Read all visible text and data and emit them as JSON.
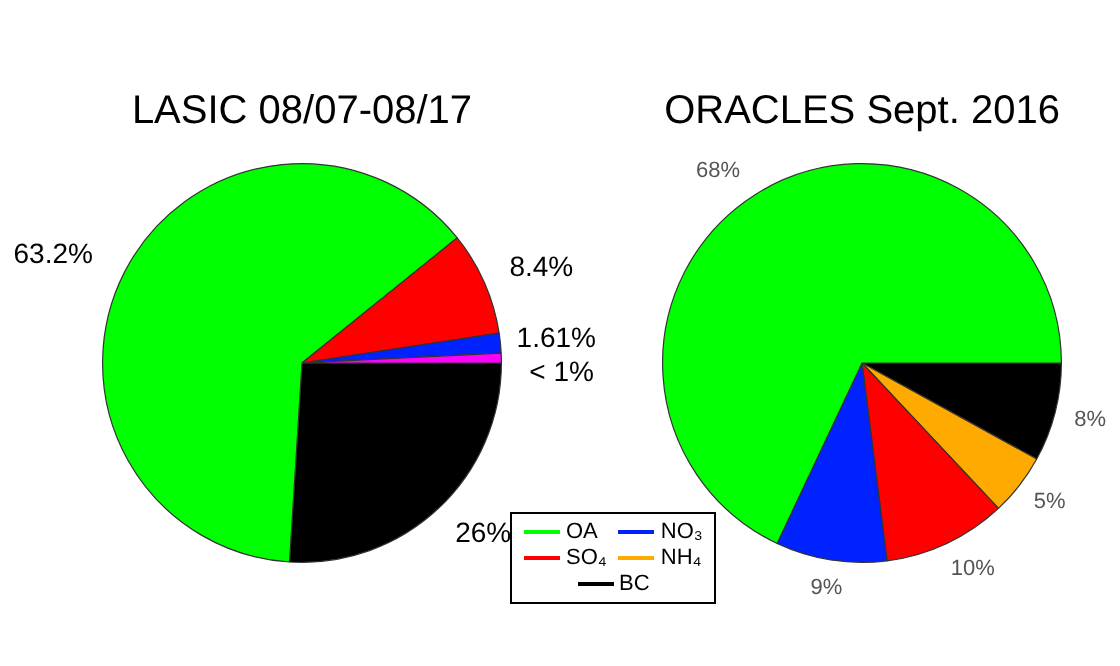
{
  "chart_data": [
    {
      "type": "pie",
      "title": "LASIC 08/07-08/17",
      "categories": [
        null,
        null,
        null,
        null,
        null
      ],
      "values": [
        26,
        63.2,
        8.4,
        1.61,
        0.79
      ],
      "colors": [
        "#000000",
        "#00ff00",
        "#ff0000",
        "#0022ff",
        "#ff00ff"
      ],
      "value_labels": [
        "26%",
        "63.2%",
        "8.4%",
        "1.61%",
        "< 1%"
      ]
    },
    {
      "type": "pie",
      "title": "ORACLES Sept. 2016",
      "categories": [
        "BC",
        "NH₄",
        "SO₄",
        "NO₃",
        "OA"
      ],
      "values": [
        8,
        5,
        10,
        9,
        68
      ],
      "colors": [
        "#000000",
        "#ffaa00",
        "#ff0000",
        "#0022ff",
        "#00ff00"
      ],
      "value_labels": [
        "8%",
        "5%",
        "10%",
        "9%",
        "68%"
      ],
      "legend": "bottom left"
    }
  ]
}
